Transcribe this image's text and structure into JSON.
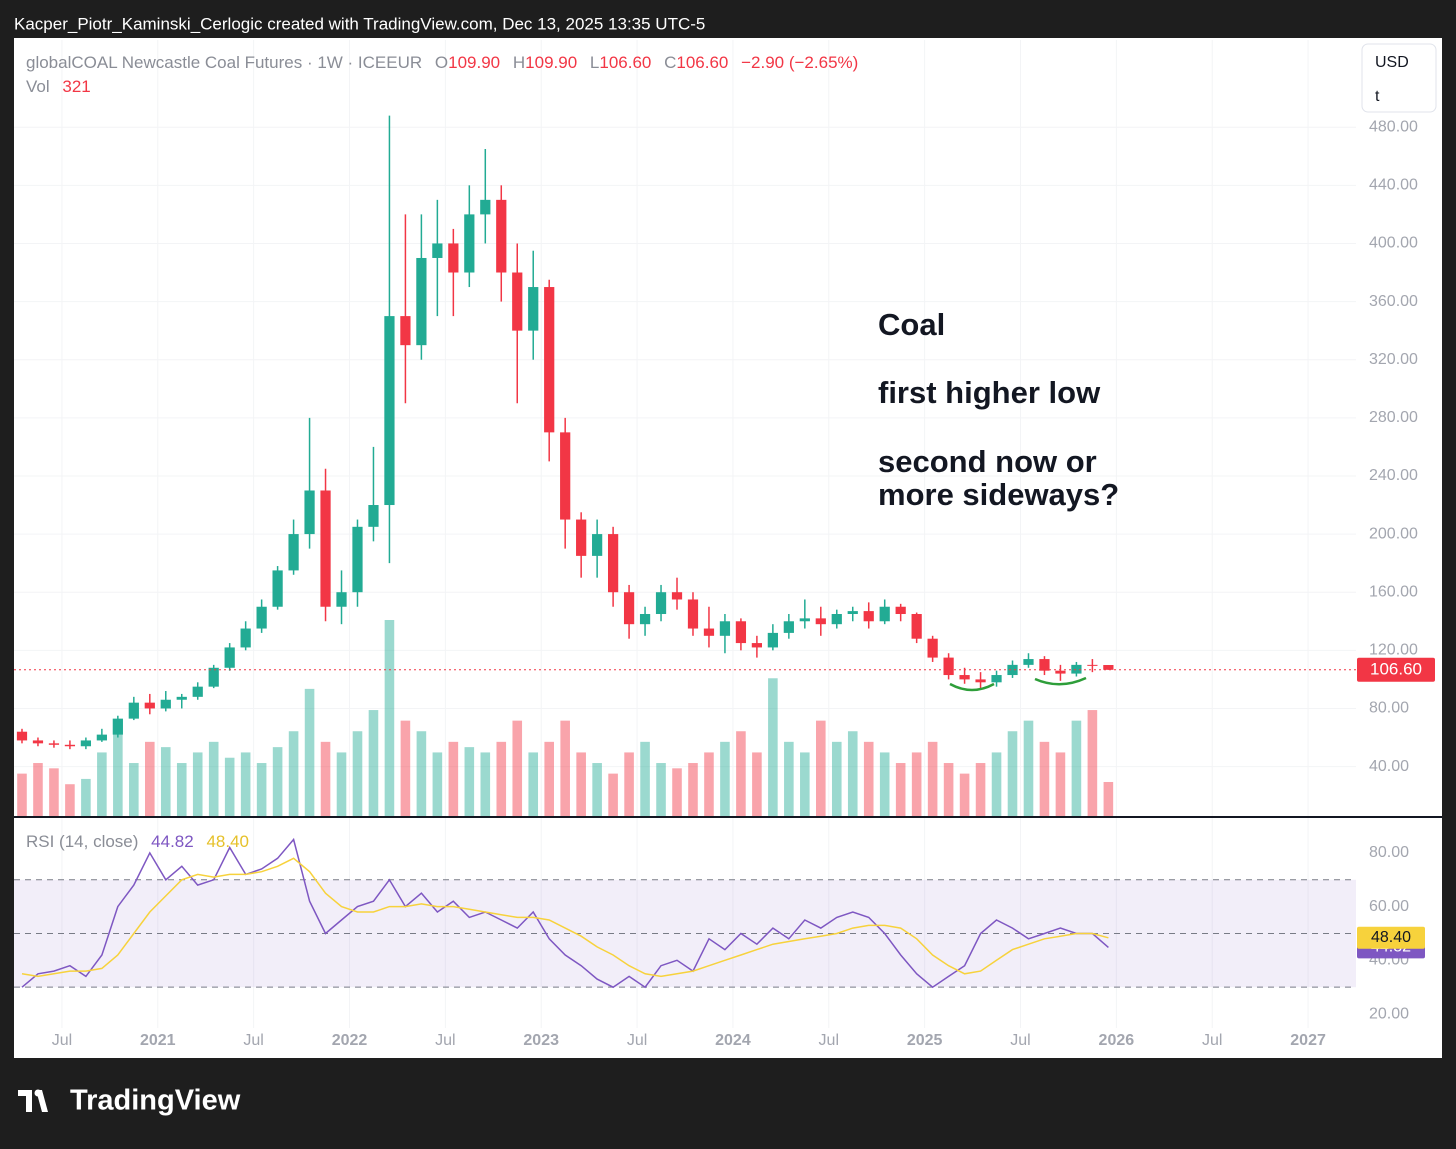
{
  "header": {
    "caption": "Kacper_Piotr_Kaminski_Cerlogic created with TradingView.com, Dec 13, 2025 13:35 UTC-5"
  },
  "footer": {
    "brand": "TradingView"
  },
  "scale_box": {
    "currency": "USD",
    "unit": "t"
  },
  "annotations": [
    "Coal",
    "first higher low",
    "second now or",
    "more sideways?"
  ],
  "chart_data": [
    {
      "type": "candlestick",
      "title": "globalCOAL Newcastle Coal Futures · 1W · ICEEUR",
      "legend": [
        {
          "label": "O",
          "value": "109.90"
        },
        {
          "label": "H",
          "value": "109.90"
        },
        {
          "label": "L",
          "value": "106.60"
        },
        {
          "label": "C",
          "value": "106.60"
        }
      ],
      "change": "−2.90 (−2.65%)",
      "volume_title": "Vol",
      "last_price_label": "106.60",
      "up_color": "#22ab94",
      "down_color": "#f23645",
      "x": [
        "2020-04",
        "2020-05",
        "2020-06",
        "2020-07",
        "2020-08",
        "2020-09",
        "2020-10",
        "2020-11",
        "2020-12",
        "2021-01",
        "2021-02",
        "2021-03",
        "2021-04",
        "2021-05",
        "2021-06",
        "2021-07",
        "2021-08",
        "2021-09",
        "2021-10",
        "2021-11",
        "2021-12",
        "2022-01",
        "2022-02",
        "2022-03",
        "2022-04",
        "2022-05",
        "2022-06",
        "2022-07",
        "2022-08",
        "2022-09",
        "2022-10",
        "2022-11",
        "2022-12",
        "2023-01",
        "2023-02",
        "2023-03",
        "2023-04",
        "2023-05",
        "2023-06",
        "2023-07",
        "2023-08",
        "2023-09",
        "2023-10",
        "2023-11",
        "2023-12",
        "2024-01",
        "2024-02",
        "2024-03",
        "2024-04",
        "2024-05",
        "2024-06",
        "2024-07",
        "2024-08",
        "2024-09",
        "2024-10",
        "2024-11",
        "2024-12",
        "2025-01",
        "2025-02",
        "2025-03",
        "2025-04",
        "2025-05",
        "2025-06",
        "2025-07",
        "2025-08",
        "2025-09",
        "2025-10",
        "2025-11",
        "2025-12"
      ],
      "open": [
        64,
        58,
        56,
        55,
        54,
        58,
        62,
        73,
        84,
        80,
        86,
        88,
        95,
        108,
        122,
        135,
        150,
        175,
        200,
        230,
        150,
        160,
        205,
        220,
        350,
        330,
        390,
        400,
        380,
        420,
        430,
        380,
        340,
        370,
        270,
        210,
        185,
        200,
        160,
        138,
        145,
        160,
        155,
        135,
        130,
        140,
        125,
        122,
        132,
        140,
        142,
        138,
        145,
        147,
        140,
        150,
        145,
        128,
        115,
        103,
        100,
        98,
        103,
        110,
        114,
        106,
        104,
        110,
        109.9
      ],
      "high": [
        66,
        60,
        58,
        58,
        60,
        66,
        75,
        88,
        90,
        92,
        90,
        98,
        110,
        125,
        140,
        155,
        178,
        210,
        280,
        245,
        175,
        210,
        260,
        488,
        420,
        420,
        430,
        410,
        440,
        465,
        440,
        400,
        395,
        375,
        280,
        215,
        210,
        205,
        165,
        150,
        165,
        170,
        160,
        150,
        145,
        142,
        130,
        138,
        145,
        155,
        150,
        148,
        150,
        153,
        155,
        152,
        146,
        130,
        118,
        108,
        105,
        106,
        113,
        118,
        116,
        110,
        112,
        114,
        109.9
      ],
      "low": [
        56,
        54,
        53,
        52,
        52,
        57,
        60,
        72,
        76,
        78,
        80,
        86,
        94,
        106,
        120,
        132,
        148,
        172,
        190,
        140,
        138,
        150,
        195,
        180,
        290,
        320,
        350,
        350,
        370,
        400,
        360,
        290,
        320,
        250,
        190,
        170,
        170,
        150,
        128,
        130,
        140,
        148,
        130,
        122,
        118,
        120,
        115,
        120,
        128,
        135,
        130,
        135,
        140,
        135,
        138,
        140,
        125,
        112,
        100,
        97,
        93,
        95,
        101,
        108,
        103,
        99,
        102,
        105,
        106.6
      ],
      "close": [
        58,
        56,
        55,
        54,
        58,
        62,
        73,
        84,
        80,
        86,
        88,
        95,
        108,
        122,
        135,
        150,
        175,
        200,
        230,
        150,
        160,
        205,
        220,
        350,
        330,
        390,
        400,
        380,
        420,
        430,
        380,
        340,
        370,
        270,
        210,
        185,
        200,
        160,
        138,
        145,
        160,
        155,
        135,
        130,
        140,
        125,
        122,
        132,
        140,
        142,
        138,
        145,
        147,
        140,
        150,
        145,
        128,
        115,
        103,
        100,
        98,
        103,
        110,
        114,
        106,
        104,
        110,
        109.9,
        106.6
      ],
      "volume": [
        400,
        500,
        450,
        300,
        350,
        600,
        900,
        500,
        700,
        650,
        500,
        600,
        700,
        550,
        600,
        500,
        650,
        800,
        1200,
        700,
        600,
        800,
        1000,
        1850,
        900,
        800,
        600,
        700,
        650,
        600,
        700,
        900,
        600,
        700,
        900,
        600,
        500,
        400,
        600,
        700,
        500,
        450,
        500,
        600,
        700,
        800,
        600,
        1300,
        700,
        600,
        900,
        700,
        800,
        700,
        600,
        500,
        600,
        700,
        500,
        400,
        500,
        600,
        800,
        900,
        700,
        600,
        900,
        1000,
        321
      ],
      "vlim": [
        0,
        1850
      ],
      "xlim": [
        "2020-04",
        "2027-04"
      ],
      "xticks": [
        {
          "value": "2020-07",
          "label": "Jul"
        },
        {
          "value": "2021-01",
          "label": "2021"
        },
        {
          "value": "2021-07",
          "label": "Jul"
        },
        {
          "value": "2022-01",
          "label": "2022"
        },
        {
          "value": "2022-07",
          "label": "Jul"
        },
        {
          "value": "2023-01",
          "label": "2023"
        },
        {
          "value": "2023-07",
          "label": "Jul"
        },
        {
          "value": "2024-01",
          "label": "2024"
        },
        {
          "value": "2024-07",
          "label": "Jul"
        },
        {
          "value": "2025-01",
          "label": "2025"
        },
        {
          "value": "2025-07",
          "label": "Jul"
        },
        {
          "value": "2026-01",
          "label": "2026"
        },
        {
          "value": "2026-07",
          "label": "Jul"
        },
        {
          "value": "2027-01",
          "label": "2027"
        }
      ],
      "ylim": [
        6,
        540
      ],
      "yticks": [
        {
          "value": 40,
          "label": "40.00"
        },
        {
          "value": 80,
          "label": "80.00"
        },
        {
          "value": 120,
          "label": "120.00"
        },
        {
          "value": 160,
          "label": "160.00"
        },
        {
          "value": 200,
          "label": "200.00"
        },
        {
          "value": 240,
          "label": "240.00"
        },
        {
          "value": 280,
          "label": "280.00"
        },
        {
          "value": 320,
          "label": "320.00"
        },
        {
          "value": 360,
          "label": "360.00"
        },
        {
          "value": 400,
          "label": "400.00"
        },
        {
          "value": 440,
          "label": "440.00"
        },
        {
          "value": 480,
          "label": "480.00"
        }
      ]
    },
    {
      "type": "line",
      "title": "RSI (14, close)",
      "bands": [
        30,
        50,
        70
      ],
      "series": [
        {
          "color": "#7e57c2",
          "value_label": "44.82",
          "values": [
            30,
            35,
            36,
            38,
            34,
            42,
            60,
            68,
            80,
            70,
            75,
            68,
            70,
            82,
            72,
            74,
            78,
            85,
            62,
            50,
            55,
            60,
            62,
            70,
            60,
            65,
            58,
            62,
            56,
            58,
            55,
            52,
            58,
            48,
            42,
            38,
            33,
            30,
            34,
            30,
            38,
            40,
            36,
            48,
            44,
            50,
            46,
            52,
            48,
            55,
            52,
            56,
            58,
            56,
            50,
            42,
            35,
            30,
            34,
            38,
            50,
            55,
            52,
            48,
            50,
            52,
            50,
            50,
            44.82
          ]
        },
        {
          "color": "#f7d23c",
          "value_label": "48.40",
          "values": [
            35,
            34,
            35,
            36,
            36,
            37,
            42,
            50,
            58,
            64,
            70,
            72,
            71,
            72,
            72,
            73,
            75,
            78,
            73,
            65,
            60,
            58,
            58,
            60,
            60,
            61,
            60,
            60,
            59,
            58,
            57,
            56,
            56,
            55,
            52,
            49,
            45,
            42,
            38,
            35,
            34,
            35,
            36,
            38,
            40,
            42,
            44,
            46,
            47,
            48,
            49,
            50,
            52,
            53,
            53,
            52,
            48,
            42,
            38,
            35,
            36,
            40,
            44,
            46,
            48,
            49,
            50,
            50,
            48.4
          ]
        }
      ],
      "ylim": [
        14.8,
        93
      ],
      "yticks": [
        {
          "value": 20,
          "label": "20.00"
        },
        {
          "value": 40,
          "label": "40.00"
        },
        {
          "value": 60,
          "label": "60.00"
        },
        {
          "value": 80,
          "label": "80.00"
        }
      ]
    }
  ]
}
